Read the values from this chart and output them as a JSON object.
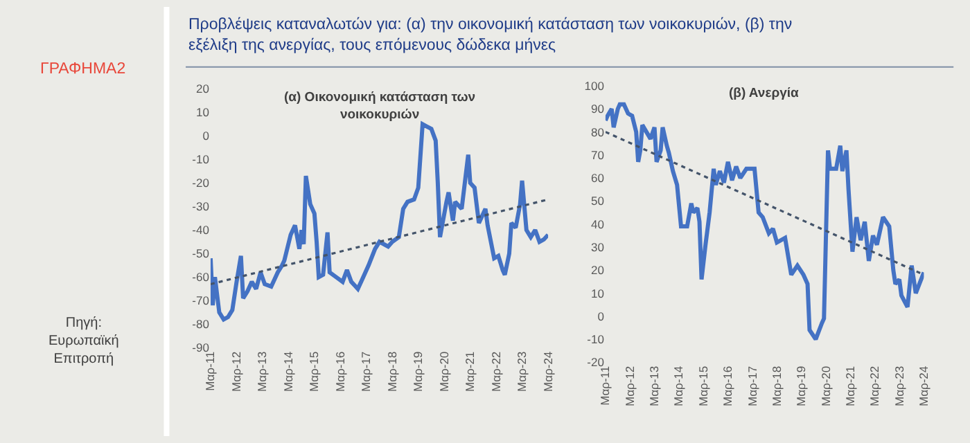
{
  "chart_data": [
    {
      "type": "line",
      "title": "(α) Οικονομική κατάσταση των νοικοκυριών",
      "annotations": [
        "ΓΡΑΦΗΜΑ2",
        "Προβλέψεις καταναλωτών για: (α) την οικονομική κατάσταση των νοικοκυριών, (β) την εξέλιξη της ανεργίας, τους επόμενους δώδεκα μήνες",
        "Πηγή: Ευρωπαϊκή Επιτροπή"
      ],
      "xlim": [
        "2011-03",
        "2024-03"
      ],
      "ylim": [
        -90,
        20
      ],
      "xticks": [
        {
          "value": "2011-03",
          "label": "Μαρ-11"
        },
        {
          "value": "2012-03",
          "label": "Μαρ-12"
        },
        {
          "value": "2013-03",
          "label": "Μαρ-13"
        },
        {
          "value": "2014-03",
          "label": "Μαρ-14"
        },
        {
          "value": "2015-03",
          "label": "Μαρ-15"
        },
        {
          "value": "2016-03",
          "label": "Μαρ-16"
        },
        {
          "value": "2017-03",
          "label": "Μαρ-17"
        },
        {
          "value": "2018-03",
          "label": "Μαρ-18"
        },
        {
          "value": "2019-03",
          "label": "Μαρ-19"
        },
        {
          "value": "2020-03",
          "label": "Μαρ-20"
        },
        {
          "value": "2021-03",
          "label": "Μαρ-21"
        },
        {
          "value": "2022-03",
          "label": "Μαρ-22"
        },
        {
          "value": "2023-03",
          "label": "Μαρ-23"
        },
        {
          "value": "2024-03",
          "label": "Μαρ-24"
        }
      ],
      "yticks": [
        -90,
        -80,
        -70,
        -60,
        -50,
        -40,
        -30,
        -20,
        -10,
        0,
        10,
        20
      ],
      "series": [
        {
          "color": "#4472c4",
          "x": [
            "2011-03",
            "2011-04",
            "2011-05",
            "2011-07",
            "2011-09",
            "2011-11",
            "2012-01",
            "2012-03",
            "2012-05",
            "2012-06",
            "2012-08",
            "2012-10",
            "2012-12",
            "2013-02",
            "2013-04",
            "2013-07",
            "2013-10",
            "2013-12",
            "2014-01",
            "2014-04",
            "2014-06",
            "2014-08",
            "2014-09",
            "2014-10",
            "2014-11",
            "2015-01",
            "2015-03",
            "2015-04",
            "2015-05",
            "2015-07",
            "2015-09",
            "2015-10",
            "2016-01",
            "2016-04",
            "2016-06",
            "2016-08",
            "2016-11",
            "2017-01",
            "2017-04",
            "2017-07",
            "2017-09",
            "2018-01",
            "2018-03",
            "2018-06",
            "2018-08",
            "2018-10",
            "2019-01",
            "2019-03",
            "2019-05",
            "2019-07",
            "2019-09",
            "2019-11",
            "2019-12",
            "2020-01",
            "2020-04",
            "2020-05",
            "2020-07",
            "2020-08",
            "2020-11",
            "2021-02",
            "2021-03",
            "2021-05",
            "2021-07",
            "2021-10",
            "2021-11",
            "2022-02",
            "2022-04",
            "2022-06",
            "2022-07",
            "2022-09",
            "2022-10",
            "2022-12",
            "2023-02",
            "2023-03",
            "2023-05",
            "2023-07",
            "2023-09",
            "2023-11",
            "2024-01",
            "2024-03"
          ],
          "values": [
            -52,
            -72,
            -60,
            -75,
            -78,
            -77,
            -74,
            -62,
            -51,
            -69,
            -66,
            -62,
            -65,
            -58,
            -63,
            -64,
            -58,
            -55,
            -53,
            -42,
            -38,
            -48,
            -40,
            -46,
            -17,
            -29,
            -33,
            -45,
            -60,
            -59,
            -41,
            -58,
            -60,
            -62,
            -57,
            -62,
            -65,
            -61,
            -55,
            -48,
            -45,
            -47,
            -45,
            -43,
            -31,
            -28,
            -27,
            -22,
            5,
            4,
            3,
            -2,
            -20,
            -43,
            -28,
            -24,
            -36,
            -28,
            -31,
            -8,
            -20,
            -22,
            -37,
            -31,
            -38,
            -52,
            -51,
            -57,
            -59,
            -50,
            -37,
            -39,
            -29,
            -19,
            -40,
            -43,
            -40,
            -45,
            -44,
            -42
          ]
        },
        {
          "color": "#44546a",
          "line_style": "dotted",
          "x": [
            "2011-03",
            "2024-03"
          ],
          "values": [
            -63,
            -27
          ]
        }
      ]
    },
    {
      "type": "line",
      "title": "(β) Ανεργία",
      "xlim": [
        "2011-03",
        "2024-03"
      ],
      "ylim": [
        -20,
        100
      ],
      "xticks": [
        {
          "value": "2011-03",
          "label": "Μαρ-11"
        },
        {
          "value": "2012-03",
          "label": "Μαρ-12"
        },
        {
          "value": "2013-03",
          "label": "Μαρ-13"
        },
        {
          "value": "2014-03",
          "label": "Μαρ-14"
        },
        {
          "value": "2015-03",
          "label": "Μαρ-15"
        },
        {
          "value": "2016-03",
          "label": "Μαρ-16"
        },
        {
          "value": "2017-03",
          "label": "Μαρ-17"
        },
        {
          "value": "2018-03",
          "label": "Μαρ-18"
        },
        {
          "value": "2019-03",
          "label": "Μαρ-19"
        },
        {
          "value": "2020-03",
          "label": "Μαρ-20"
        },
        {
          "value": "2021-03",
          "label": "Μαρ-21"
        },
        {
          "value": "2022-03",
          "label": "Μαρ-22"
        },
        {
          "value": "2023-03",
          "label": "Μαρ-23"
        },
        {
          "value": "2024-03",
          "label": "Μαρ-24"
        }
      ],
      "yticks": [
        -20,
        -10,
        0,
        10,
        20,
        30,
        40,
        50,
        60,
        70,
        80,
        90,
        100
      ],
      "series": [
        {
          "color": "#4472c4",
          "x": [
            "2011-03",
            "2011-04",
            "2011-06",
            "2011-07",
            "2011-09",
            "2011-10",
            "2011-12",
            "2012-02",
            "2012-04",
            "2012-06",
            "2012-07",
            "2012-08",
            "2012-09",
            "2012-11",
            "2013-01",
            "2013-03",
            "2013-04",
            "2013-06",
            "2013-07",
            "2013-09",
            "2013-10",
            "2013-12",
            "2014-02",
            "2014-04",
            "2014-07",
            "2014-09",
            "2014-10",
            "2014-12",
            "2015-01",
            "2015-02",
            "2015-04",
            "2015-06",
            "2015-08",
            "2015-09",
            "2015-11",
            "2016-01",
            "2016-03",
            "2016-05",
            "2016-07",
            "2016-09",
            "2016-12",
            "2017-04",
            "2017-06",
            "2017-08",
            "2017-11",
            "2018-01",
            "2018-03",
            "2018-07",
            "2018-10",
            "2019-01",
            "2019-04",
            "2019-06",
            "2019-07",
            "2019-10",
            "2020-01",
            "2020-02",
            "2020-04",
            "2020-05",
            "2020-08",
            "2020-10",
            "2020-11",
            "2021-01",
            "2021-02",
            "2021-04",
            "2021-06",
            "2021-08",
            "2021-10",
            "2021-12",
            "2022-02",
            "2022-04",
            "2022-07",
            "2022-10",
            "2022-12",
            "2023-01",
            "2023-03",
            "2023-04",
            "2023-07",
            "2023-09",
            "2023-11",
            "2024-03"
          ],
          "values": [
            85,
            87,
            90,
            82,
            90,
            92,
            92,
            88,
            87,
            80,
            67,
            72,
            83,
            80,
            77,
            82,
            67,
            72,
            82,
            74,
            71,
            63,
            57,
            39,
            39,
            49,
            45,
            47,
            41,
            16,
            31,
            45,
            64,
            57,
            63,
            58,
            67,
            59,
            65,
            60,
            64,
            64,
            45,
            43,
            36,
            38,
            32,
            34,
            18,
            22,
            18,
            14,
            -6,
            -10,
            -3,
            -1,
            72,
            64,
            64,
            74,
            63,
            72,
            55,
            28,
            43,
            33,
            41,
            24,
            35,
            31,
            43,
            39,
            20,
            14,
            16,
            9,
            4,
            22,
            10,
            19
          ]
        },
        {
          "color": "#44546a",
          "line_style": "dotted",
          "x": [
            "2011-03",
            "2024-03"
          ],
          "values": [
            80,
            18
          ]
        }
      ]
    }
  ]
}
